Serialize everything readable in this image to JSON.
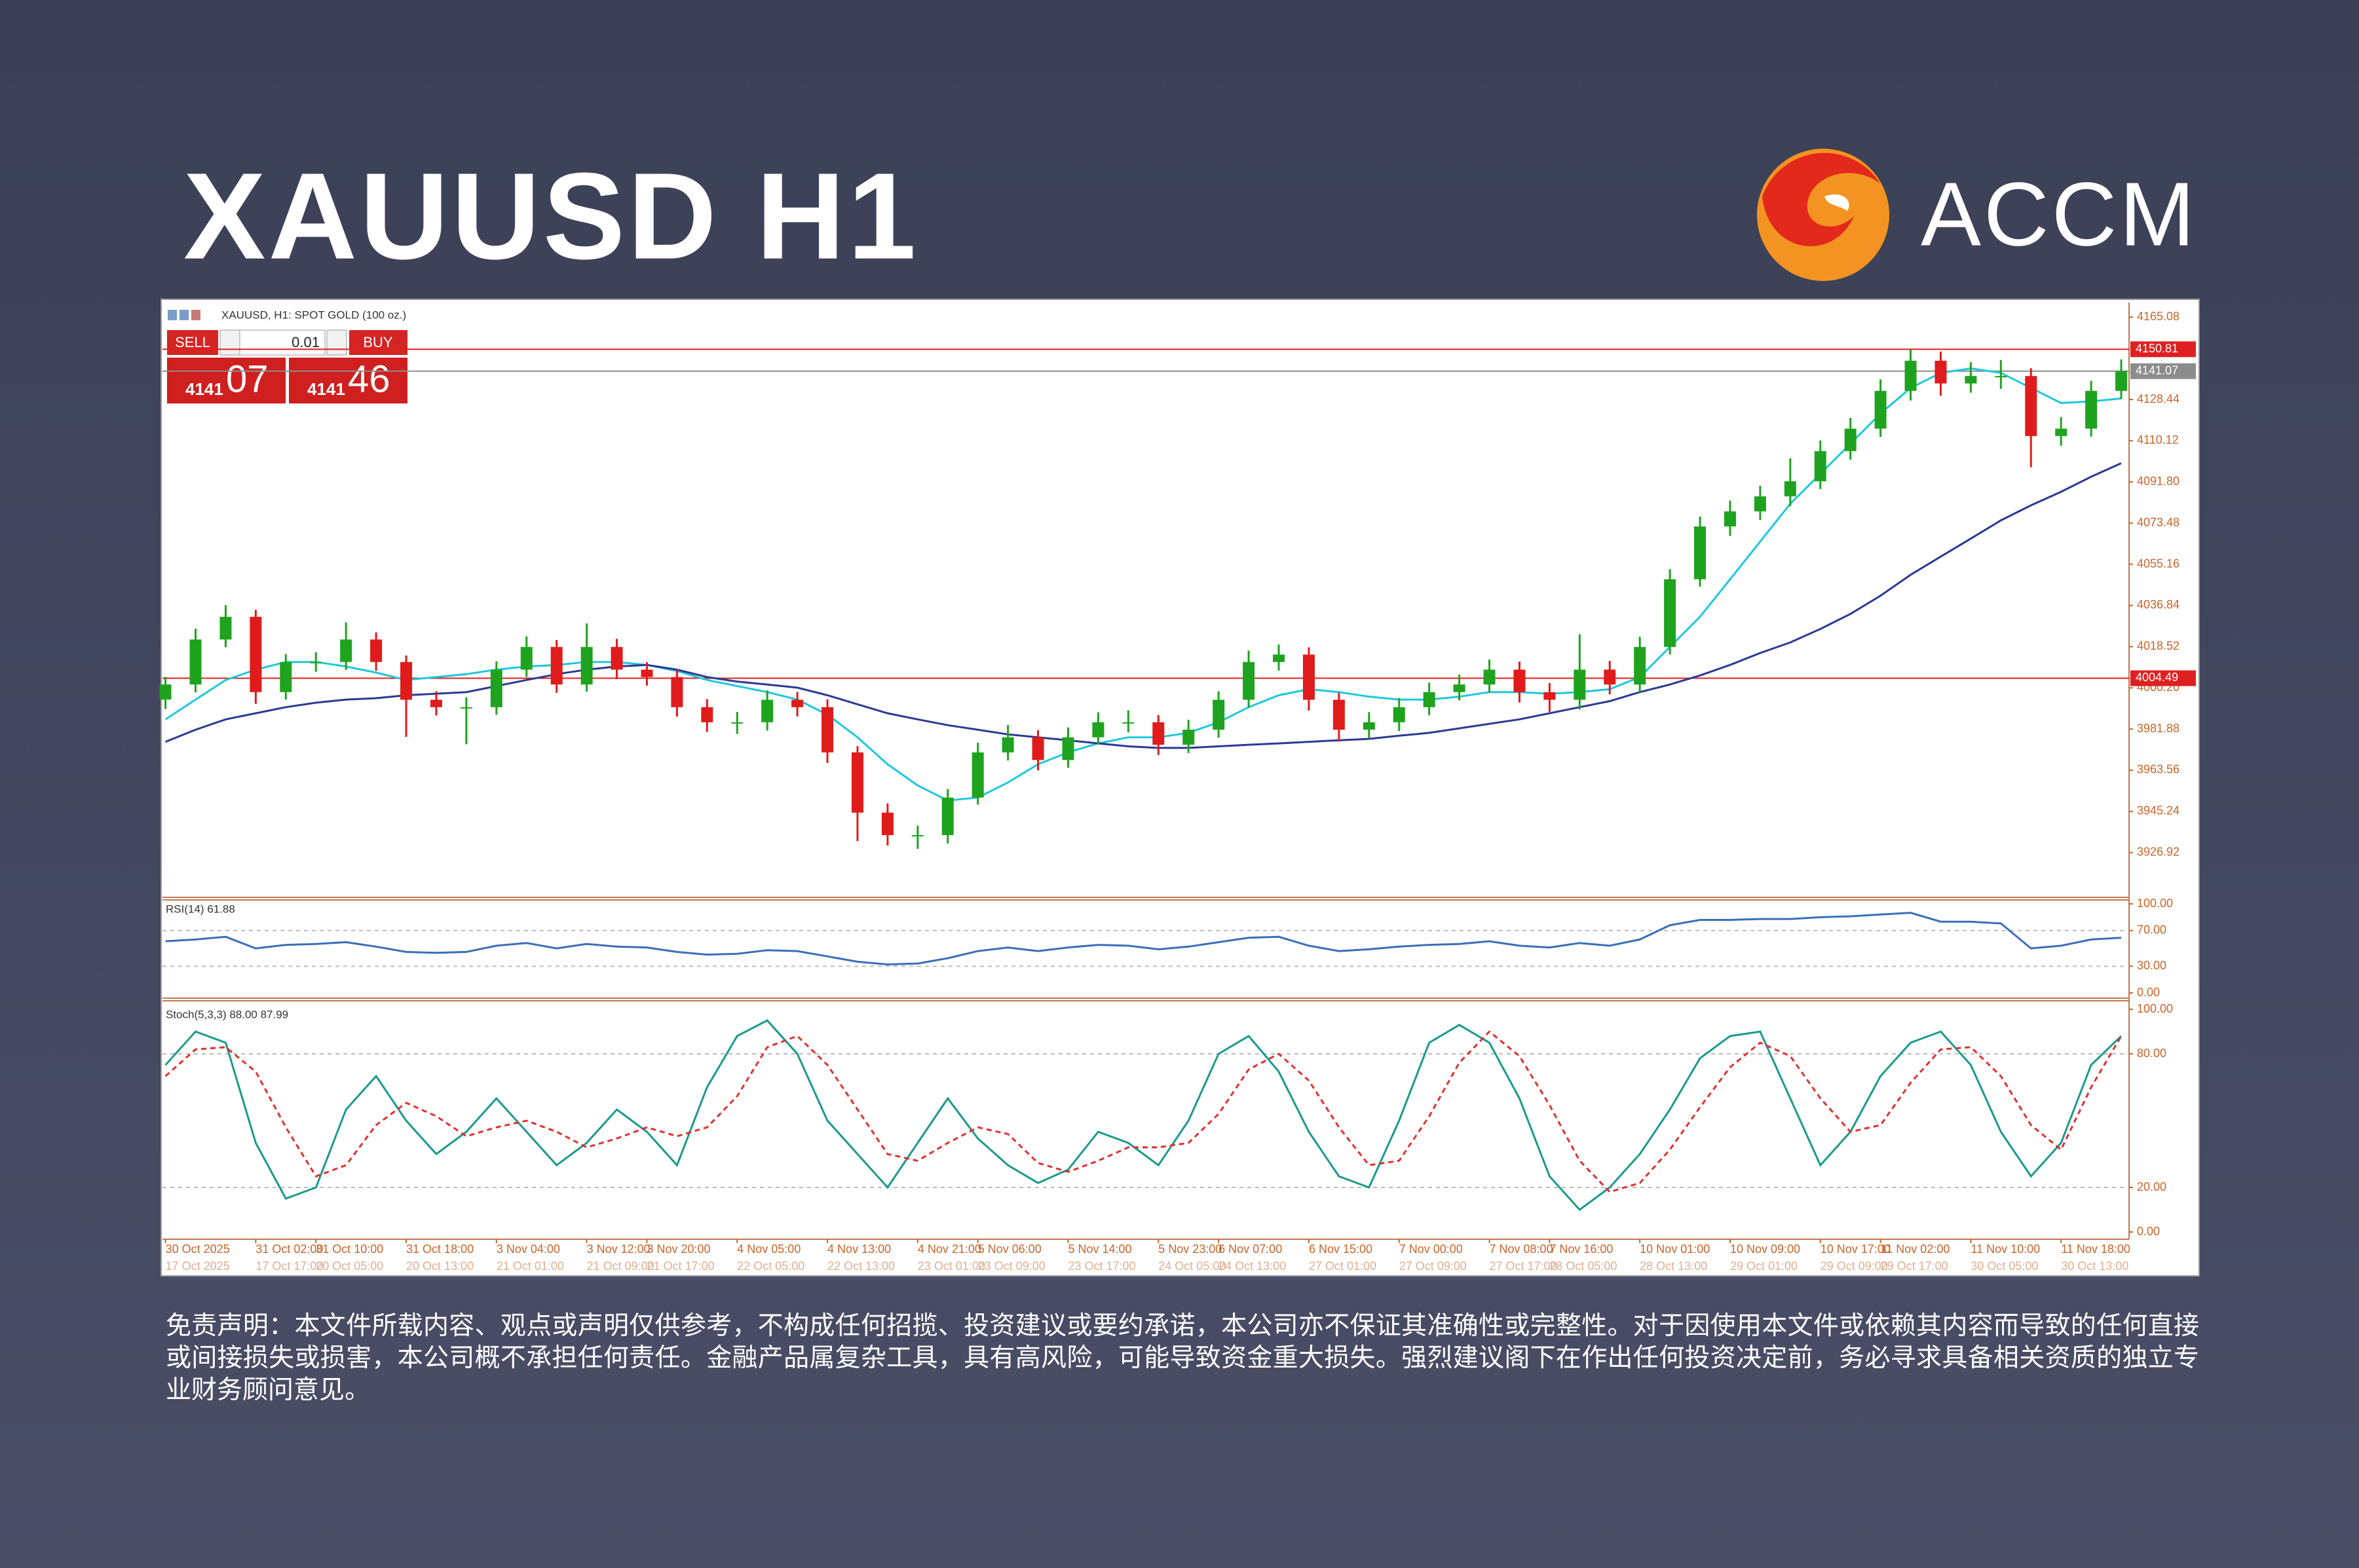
{
  "header": {
    "title": "XAUUSD H1",
    "brand": "ACCM"
  },
  "trade_panel": {
    "sell": "SELL",
    "buy": "BUY",
    "lot": "0.01",
    "bid_big": "4141",
    "bid_small": "07",
    "ask_big": "4141",
    "ask_small": "46"
  },
  "disclaimer": "免责声明：本文件所载内容、观点或声明仅供参考，不构成任何招揽、投资建议或要约承诺，本公司亦不保证其准确性或完整性。对于因使用本文件或依赖其内容而导致的任何直接或间接损失或损害，本公司概不承担任何责任。金融产品属复杂工具，具有高风险，可能导致资金重大损失。强烈建议阁下在作出任何投资决定前，务必寻求具备相关资质的独立专业财务顾问意见。",
  "chart_data": [
    {
      "type": "candlestick",
      "title": "XAUUSD, H1: SPOT GOLD (100 oz.)",
      "up_color": "#1fa31f",
      "down_color": "#e01b1b",
      "categories": [
        "30 Oct 2025",
        null,
        null,
        "31 Oct 02:00",
        null,
        "31 Oct 10:00",
        null,
        null,
        "31 Oct 18:00",
        null,
        null,
        "3 Nov 04:00",
        null,
        null,
        "3 Nov 12:00",
        null,
        "3 Nov 20:00",
        null,
        null,
        "4 Nov 05:00",
        null,
        null,
        "4 Nov 13:00",
        null,
        null,
        "4 Nov 21:00",
        null,
        "5 Nov 06:00",
        null,
        null,
        "5 Nov 14:00",
        null,
        null,
        "5 Nov 23:00",
        null,
        "6 Nov 07:00",
        null,
        null,
        "6 Nov 15:00",
        null,
        null,
        "7 Nov 00:00",
        null,
        null,
        "7 Nov 08:00",
        null,
        "7 Nov 16:00",
        null,
        null,
        "10 Nov 01:00",
        null,
        null,
        "10 Nov 09:00",
        null,
        null,
        "10 Nov 17:00",
        null,
        "11 Nov 02:00",
        null,
        null,
        "11 Nov 10:00",
        null,
        null,
        "11 Nov 18:00",
        null,
        null
      ],
      "categories_secondary": [
        "17 Oct 2025",
        null,
        null,
        "17 Oct 17:00",
        null,
        "20 Oct 05:00",
        null,
        null,
        "20 Oct 13:00",
        null,
        null,
        "21 Oct 01:00",
        null,
        null,
        "21 Oct 09:00",
        null,
        "21 Oct 17:00",
        null,
        null,
        "22 Oct 05:00",
        null,
        null,
        "22 Oct 13:00",
        null,
        null,
        "23 Oct 01:00",
        null,
        "23 Oct 09:00",
        null,
        null,
        "23 Oct 17:00",
        null,
        null,
        "24 Oct 05:00",
        null,
        "24 Oct 13:00",
        null,
        null,
        "27 Oct 01:00",
        null,
        null,
        "27 Oct 09:00",
        null,
        null,
        "27 Oct 17:00",
        null,
        "28 Oct 05:00",
        null,
        null,
        "28 Oct 13:00",
        null,
        null,
        "29 Oct 01:00",
        null,
        null,
        "29 Oct 09:00",
        null,
        "29 Oct 17:00",
        null,
        null,
        "30 Oct 05:00",
        null,
        null,
        "30 Oct 13:00",
        null,
        null
      ],
      "open": [
        3995.0,
        4001.7,
        4021.7,
        4031.8,
        3998.3,
        4011.7,
        4011.7,
        4021.7,
        4011.7,
        3994.9,
        3991.6,
        3991.6,
        4008.3,
        4018.4,
        4001.7,
        4018.4,
        4008.3,
        4005.0,
        3991.6,
        3984.9,
        3984.9,
        3994.9,
        3991.6,
        3971.5,
        3944.7,
        3934.7,
        3934.7,
        3951.4,
        3971.5,
        3978.2,
        3968.1,
        3978.2,
        3984.9,
        3984.9,
        3974.9,
        3981.6,
        3994.9,
        4011.7,
        4015.0,
        3994.9,
        3981.6,
        3984.9,
        3991.6,
        3998.3,
        4001.7,
        4008.3,
        3998.3,
        3994.9,
        4008.3,
        4001.7,
        4018.4,
        4048.5,
        4072.0,
        4078.7,
        4085.4,
        4092.1,
        4105.5,
        4115.5,
        4132.3,
        4145.7,
        4135.6,
        4138.9,
        4138.9,
        4112.2,
        4115.5,
        4132.3
      ],
      "high": [
        4005.1,
        4026.5,
        4037.0,
        4034.9,
        4015.2,
        4016.0,
        4029.3,
        4024.9,
        4014.6,
        3998.7,
        3996.0,
        4012.0,
        4023.1,
        4021.5,
        4028.9,
        4022.0,
        4011.6,
        4008.3,
        3995.2,
        3989.5,
        3999.0,
        3998.4,
        3995.1,
        3974.3,
        3948.8,
        3938.9,
        3955.2,
        3975.8,
        3983.7,
        3981.4,
        3982.6,
        3989.3,
        3990.2,
        3988.1,
        3986.0,
        3998.7,
        4016.8,
        4019.5,
        4018.2,
        3998.0,
        3989.4,
        3995.7,
        4002.5,
        4006.1,
        4012.8,
        4011.9,
        4002.4,
        4024.0,
        4012.2,
        4022.9,
        4053.0,
        4076.4,
        4083.5,
        4090.1,
        4102.3,
        4110.2,
        4120.3,
        4137.4,
        4150.6,
        4149.8,
        4145.1,
        4146.0,
        4142.4,
        4120.7,
        4136.8,
        4146.3
      ],
      "low": [
        3990.8,
        3998.2,
        4018.3,
        3993.1,
        3995.0,
        4007.4,
        4008.2,
        4007.8,
        3978.4,
        3987.9,
        3975.1,
        3988.2,
        4005.0,
        3998.0,
        3998.5,
        4004.1,
        4001.2,
        3987.4,
        3980.6,
        3979.7,
        3981.2,
        3987.5,
        3966.8,
        3932.0,
        3930.1,
        3928.6,
        3931.0,
        3948.3,
        3967.9,
        3963.5,
        3964.7,
        3975.0,
        3980.4,
        3970.3,
        3971.2,
        3978.0,
        3991.4,
        4007.9,
        3990.1,
        3976.3,
        3977.8,
        3981.0,
        3988.0,
        3994.6,
        3998.1,
        3993.7,
        3989.5,
        3990.6,
        3997.3,
        3998.4,
        4015.1,
        4045.2,
        4067.8,
        4074.9,
        4081.0,
        4088.6,
        4101.7,
        4111.8,
        4128.0,
        4130.2,
        4131.5,
        4133.2,
        4098.3,
        4107.9,
        4112.0,
        4128.7
      ],
      "close": [
        4001.7,
        4021.7,
        4031.8,
        3998.3,
        4011.7,
        4011.7,
        4021.7,
        4011.7,
        3994.9,
        3991.6,
        3991.6,
        4008.3,
        4018.4,
        4001.7,
        4018.4,
        4008.3,
        4005.0,
        3991.6,
        3984.9,
        3984.9,
        3994.9,
        3991.6,
        3971.5,
        3944.7,
        3934.7,
        3934.7,
        3951.4,
        3971.5,
        3978.2,
        3968.1,
        3978.2,
        3984.9,
        3984.9,
        3974.9,
        3981.6,
        3994.9,
        4011.7,
        4015.0,
        3994.9,
        3981.6,
        3984.9,
        3991.6,
        3998.3,
        4001.7,
        4008.3,
        3998.3,
        3994.9,
        4008.3,
        4001.7,
        4018.4,
        4048.5,
        4072.0,
        4078.7,
        4085.4,
        4092.1,
        4105.5,
        4115.5,
        4132.3,
        4145.7,
        4135.6,
        4138.9,
        4138.9,
        4112.2,
        4115.5,
        4132.3,
        4141.1
      ],
      "series": [
        {
          "color": "#1ec8dc",
          "values": [
            3986.2,
            3995.0,
            4003.7,
            4008.3,
            4011.7,
            4011.7,
            4009.7,
            4007.0,
            4003.7,
            4005.0,
            4006.3,
            4008.3,
            4009.7,
            4010.4,
            4011.7,
            4011.7,
            4010.4,
            4007.7,
            4003.7,
            4001.0,
            3998.3,
            3995.0,
            3988.3,
            3978.2,
            3966.2,
            3956.8,
            3950.1,
            3951.4,
            3958.1,
            3966.2,
            3971.5,
            3975.5,
            3978.2,
            3978.2,
            3980.2,
            3984.9,
            3991.6,
            3996.9,
            3999.6,
            3998.3,
            3996.3,
            3995.0,
            3995.0,
            3996.3,
            3998.3,
            3998.3,
            3997.6,
            3998.3,
            3999.6,
            4005.0,
            4018.4,
            4031.8,
            4048.5,
            4065.3,
            4082.1,
            4095.4,
            4108.8,
            4122.2,
            4133.6,
            4140.3,
            4142.3,
            4140.3,
            4133.6,
            4126.9,
            4127.6,
            4128.9
          ]
        },
        {
          "color": "#2b3a92",
          "values": [
            3976.2,
            3981.6,
            3986.2,
            3988.9,
            3991.6,
            3993.6,
            3995.0,
            3995.6,
            3996.9,
            3997.6,
            3998.3,
            4001.0,
            4003.7,
            4006.3,
            4008.3,
            4009.7,
            4010.4,
            4008.3,
            4005.0,
            4003.0,
            4001.7,
            4000.3,
            3996.9,
            3992.9,
            3988.9,
            3986.2,
            3983.6,
            3981.6,
            3979.5,
            3978.2,
            3976.9,
            3975.5,
            3974.2,
            3973.5,
            3973.5,
            3974.2,
            3974.9,
            3975.5,
            3976.2,
            3976.9,
            3977.5,
            3978.9,
            3980.2,
            3982.2,
            3984.2,
            3986.2,
            3988.9,
            3991.6,
            3994.3,
            3998.3,
            4001.7,
            4005.7,
            4010.4,
            4015.7,
            4020.4,
            4026.4,
            4033.1,
            4041.2,
            4050.5,
            4058.6,
            4066.6,
            4074.7,
            4081.4,
            4087.4,
            4094.1,
            4100.1
          ]
        }
      ],
      "hlines": [
        {
          "value": 4150.81,
          "color": "#e02020"
        },
        {
          "value": 4141.07,
          "color": "#8c8c8c"
        },
        {
          "value": 4004.49,
          "color": "#e02020"
        }
      ],
      "ylim": [
        3908.2,
        4170.4
      ],
      "yticks": [
        4165.08,
        4128.44,
        4110.12,
        {
          "value": 4091.8,
          "label": "4091.80"
        },
        4073.48,
        4055.16,
        4036.84,
        4018.52,
        {
          "value": 4000.2,
          "label": "4000.20"
        },
        3981.88,
        3963.56,
        3945.24,
        3926.92
      ]
    },
    {
      "type": "line",
      "title": "RSI(14) 61.88",
      "series": [
        {
          "color": "#3a6fb8",
          "values": [
            58,
            60,
            63,
            50,
            54,
            55,
            57,
            52,
            46,
            45,
            46,
            53,
            56,
            50,
            55,
            52,
            51,
            46,
            43,
            44,
            48,
            47,
            41,
            35,
            32,
            33,
            39,
            47,
            51,
            47,
            51,
            54,
            53,
            49,
            52,
            57,
            62,
            63,
            53,
            47,
            49,
            52,
            54,
            55,
            58,
            53,
            51,
            56,
            53,
            60,
            76,
            82,
            82,
            83,
            83,
            85,
            86,
            88,
            90,
            80,
            80,
            78,
            50,
            53,
            60,
            61.88
          ]
        }
      ],
      "ylim": [
        0,
        100
      ],
      "yticks": [
        {
          "value": 100,
          "label": "100.00"
        },
        {
          "value": 70,
          "label": "70.00"
        },
        {
          "value": 30,
          "label": "30.00"
        },
        {
          "value": 0,
          "label": "0.00"
        }
      ]
    },
    {
      "type": "line",
      "title": "Stoch(5,3,3) 88.00 87.99",
      "series": [
        {
          "color": "#1a9a8a",
          "values": [
            75,
            90,
            85,
            40,
            15,
            20,
            55,
            70,
            50,
            35,
            45,
            60,
            45,
            30,
            40,
            55,
            45,
            30,
            65,
            88,
            95,
            80,
            50,
            35,
            20,
            40,
            60,
            42,
            30,
            22,
            28,
            45,
            40,
            30,
            50,
            80,
            88,
            72,
            45,
            25,
            20,
            50,
            85,
            93,
            85,
            60,
            25,
            10,
            20,
            35,
            55,
            78,
            88,
            90,
            60,
            30,
            45,
            70,
            85,
            90,
            75,
            45,
            25,
            40,
            75,
            88
          ]
        },
        {
          "color": "#e03030",
          "dashed": true,
          "values": [
            70,
            82,
            83,
            72,
            47,
            25,
            30,
            48,
            58,
            52,
            43,
            47,
            50,
            45,
            38,
            42,
            47,
            43,
            47,
            61,
            83,
            88,
            75,
            55,
            35,
            32,
            40,
            47,
            44,
            31,
            27,
            32,
            38,
            38,
            40,
            53,
            73,
            80,
            68,
            47,
            30,
            32,
            52,
            76,
            90,
            79,
            57,
            32,
            18,
            22,
            37,
            56,
            74,
            85,
            79,
            60,
            45,
            48,
            67,
            82,
            83,
            70,
            48,
            37,
            65,
            87.99
          ]
        }
      ],
      "ylim": [
        0,
        100
      ],
      "yticks": [
        {
          "value": 100,
          "label": "100.00"
        },
        {
          "value": 80,
          "label": "80.00"
        },
        {
          "value": 20,
          "label": "20.00"
        },
        {
          "value": 0,
          "label": "0.00"
        }
      ]
    }
  ]
}
